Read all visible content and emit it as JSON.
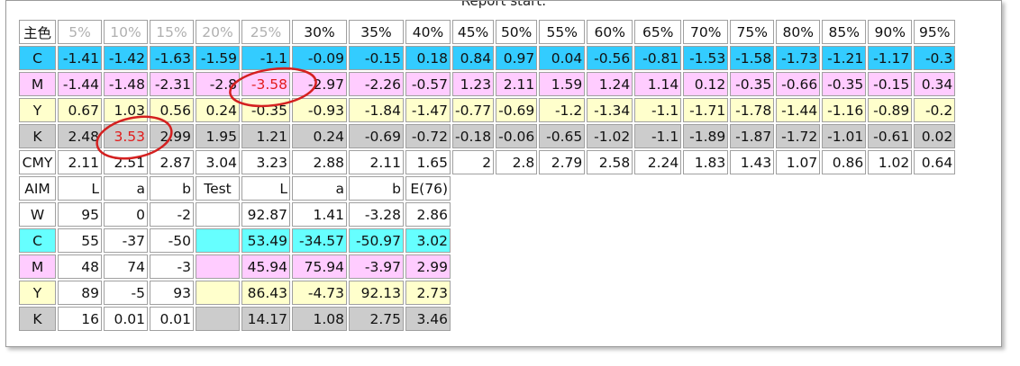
{
  "report_start": "Report start:",
  "table": {
    "header": [
      "主色",
      "5%",
      "10%",
      "15%",
      "20%",
      "25%",
      "30%",
      "35%",
      "40%",
      "45%",
      "50%",
      "55%",
      "60%",
      "65%",
      "70%",
      "75%",
      "80%",
      "85%",
      "90%",
      "95%"
    ],
    "rows": [
      {
        "label": "C",
        "values": [
          "-1.41",
          "-1.42",
          "-1.63",
          "-1.59",
          "-1.1",
          "-0.09",
          "-0.15",
          "0.18",
          "0.84",
          "0.97",
          "0.04",
          "-0.56",
          "-0.81",
          "-1.53",
          "-1.58",
          "-1.73",
          "-1.21",
          "-1.17",
          "-0.3"
        ]
      },
      {
        "label": "M",
        "values": [
          "-1.44",
          "-1.48",
          "-2.31",
          "-2.8",
          "-3.58",
          "-2.97",
          "-2.26",
          "-0.57",
          "1.23",
          "2.11",
          "1.59",
          "1.24",
          "1.14",
          "0.12",
          "-0.35",
          "-0.66",
          "-0.35",
          "-0.15",
          "0.34"
        ]
      },
      {
        "label": "Y",
        "values": [
          "0.67",
          "1.03",
          "0.56",
          "0.24",
          "-0.35",
          "-0.93",
          "-1.84",
          "-1.47",
          "-0.77",
          "-0.69",
          "-1.2",
          "-1.34",
          "-1.1",
          "-1.71",
          "-1.78",
          "-1.44",
          "-1.16",
          "-0.89",
          "-0.2"
        ]
      },
      {
        "label": "K",
        "values": [
          "2.48",
          "3.53",
          "2.99",
          "1.95",
          "1.21",
          "0.24",
          "-0.69",
          "-0.72",
          "-0.18",
          "-0.06",
          "-0.65",
          "-1.02",
          "-1.1",
          "-1.89",
          "-1.87",
          "-1.72",
          "-1.01",
          "-0.61",
          "0.02"
        ]
      },
      {
        "label": "CMY",
        "values": [
          "2.11",
          "2.51",
          "2.87",
          "3.04",
          "3.23",
          "2.88",
          "2.11",
          "1.65",
          "2",
          "2.8",
          "2.79",
          "2.58",
          "2.24",
          "1.83",
          "1.43",
          "1.07",
          "0.86",
          "1.02",
          "0.64"
        ]
      }
    ]
  },
  "aim_table": {
    "header": [
      "AIM",
      "L",
      "a",
      "b",
      "Test",
      "L",
      "a",
      "b",
      "E(76)"
    ],
    "rows": [
      {
        "label": "W",
        "aim": [
          "95",
          "0",
          "-2"
        ],
        "test": [
          "92.87",
          "1.41",
          "-3.28"
        ],
        "e": "2.86"
      },
      {
        "label": "C",
        "aim": [
          "55",
          "-37",
          "-50"
        ],
        "test": [
          "53.49",
          "-34.57",
          "-50.97"
        ],
        "e": "3.02"
      },
      {
        "label": "M",
        "aim": [
          "48",
          "74",
          "-3"
        ],
        "test": [
          "45.94",
          "75.94",
          "-3.97"
        ],
        "e": "2.99"
      },
      {
        "label": "Y",
        "aim": [
          "89",
          "-5",
          "93"
        ],
        "test": [
          "86.43",
          "-4.73",
          "92.13"
        ],
        "e": "2.73"
      },
      {
        "label": "K",
        "aim": [
          "16",
          "0.01",
          "0.01"
        ],
        "test": [
          "14.17",
          "1.08",
          "2.75"
        ],
        "e": "3.46"
      }
    ]
  }
}
